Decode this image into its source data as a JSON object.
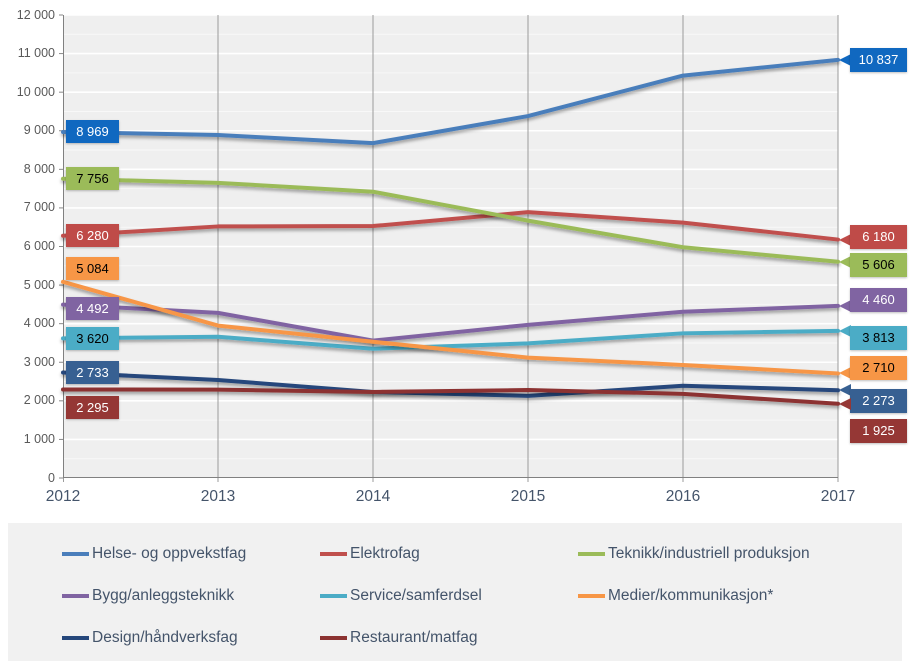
{
  "chart_data": {
    "type": "line",
    "x": [
      "2012",
      "2013",
      "2014",
      "2015",
      "2016",
      "2017"
    ],
    "ylim": [
      0,
      12000
    ],
    "y_major_step": 1000,
    "y_minor_step": 500,
    "y_tick_labels": [
      "0",
      "1 000",
      "2 000",
      "3 000",
      "4 000",
      "5 000",
      "6 000",
      "7 000",
      "8 000",
      "9 000",
      "10 000",
      "11 000",
      "12 000"
    ],
    "grid": true,
    "legend_position": "bottom",
    "series": [
      {
        "name": "Helse- og oppvekstfag",
        "color": "#4A7EBB",
        "label_fill": "#1068C0",
        "label_text_color": "#FFFFFF",
        "values": [
          8969,
          8890,
          8680,
          9380,
          10430,
          10837
        ],
        "first_label": "8 969",
        "last_label": "10 837"
      },
      {
        "name": "Elektrofag",
        "color": "#C0504D",
        "label_fill": "#BF4B48",
        "label_text_color": "#FFFFFF",
        "values": [
          6280,
          6520,
          6530,
          6890,
          6620,
          6180
        ],
        "first_label": "6 280",
        "last_label": "6 180"
      },
      {
        "name": "Teknikk/industriell produksjon",
        "color": "#9BBB59",
        "label_fill": "#9BBB59",
        "label_text_color": "#000000",
        "values": [
          7756,
          7650,
          7420,
          6670,
          5980,
          5606
        ],
        "first_label": "7 756",
        "last_label": "5 606"
      },
      {
        "name": "Bygg/anleggsteknikk",
        "color": "#8064A2",
        "label_fill": "#8064A2",
        "label_text_color": "#FFFFFF",
        "values": [
          4492,
          4280,
          3560,
          3970,
          4310,
          4460
        ],
        "first_label": "4 492",
        "last_label": "4 460"
      },
      {
        "name": "Service/samferdsel",
        "color": "#4BACC6",
        "label_fill": "#4BACC6",
        "label_text_color": "#000000",
        "values": [
          3620,
          3660,
          3350,
          3490,
          3750,
          3813
        ],
        "first_label": "3 620",
        "last_label": "3 813"
      },
      {
        "name": "Medier/kommunikasjon*",
        "color": "#F79646",
        "label_fill": "#F79646",
        "label_text_color": "#000000",
        "values": [
          5084,
          3950,
          3530,
          3120,
          2930,
          2710
        ],
        "first_label": "5 084",
        "last_label": "2 710"
      },
      {
        "name": "Design/håndverksfag",
        "color": "#25477B",
        "label_fill": "#376092",
        "label_text_color": "#FFFFFF",
        "values": [
          2733,
          2540,
          2230,
          2130,
          2390,
          2273
        ],
        "first_label": "2 733",
        "last_label": "2 273"
      },
      {
        "name": "Restaurant/matfag",
        "color": "#8C3331",
        "label_fill": "#953735",
        "label_text_color": "#FFFFFF",
        "values": [
          2295,
          2290,
          2230,
          2280,
          2180,
          1925
        ],
        "first_label": "2 295",
        "last_label": "1 925"
      }
    ]
  }
}
